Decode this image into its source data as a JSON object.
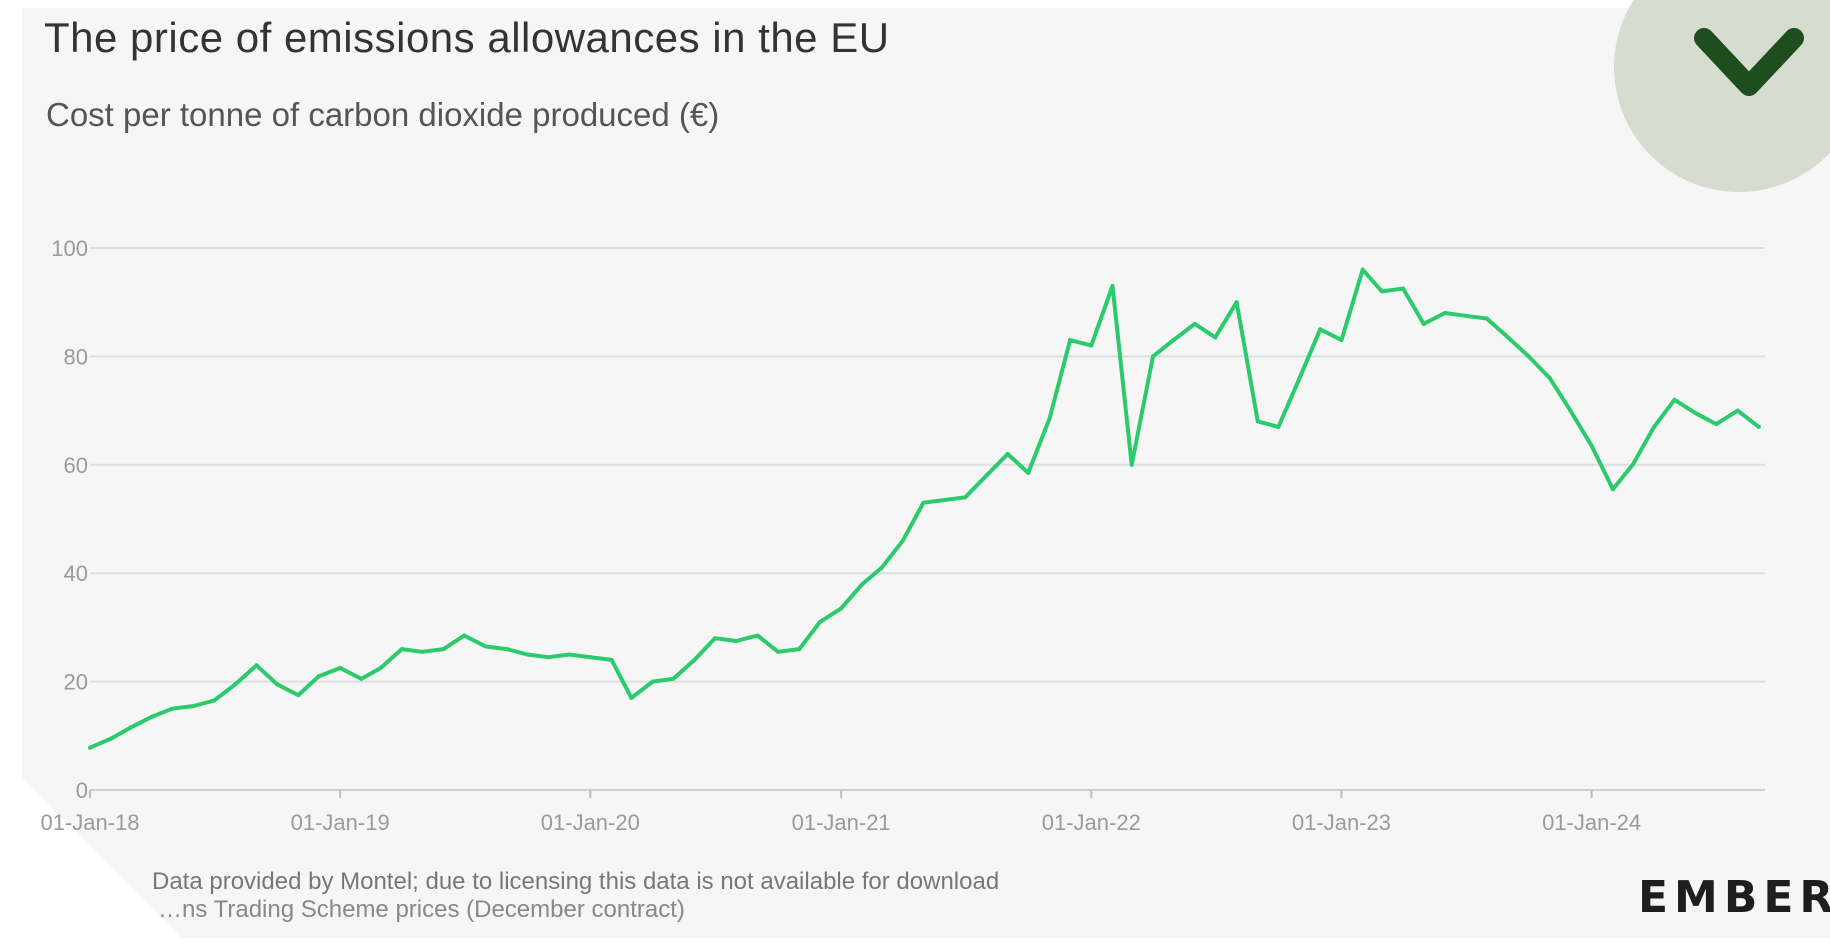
{
  "header": {
    "title": "The price of emissions allowances in the EU",
    "subtitle": "Cost per tonne of carbon dioxide produced (€)"
  },
  "footer": {
    "source_line": "Data provided by Montel; due to licensing this data is not available for download",
    "note_line": "…ns Trading Scheme prices (December contract)"
  },
  "brand": {
    "logo_text": "EMBER"
  },
  "colors": {
    "line": "#2bcb6c",
    "grid": "#dedede",
    "badge_bg": "#d6dccf",
    "chevron": "#1e4d1e"
  },
  "icons": {
    "corner_badge": "chevron-down-icon"
  },
  "chart_data": {
    "type": "line",
    "title": "The price of emissions allowances in the EU",
    "subtitle": "Cost per tonne of carbon dioxide produced (€)",
    "xlabel": "",
    "ylabel": "",
    "ylim": [
      0,
      100
    ],
    "yticks": [
      0,
      20,
      40,
      60,
      80,
      100
    ],
    "xticks": [
      "01-Jan-18",
      "01-Jan-19",
      "01-Jan-20",
      "01-Jan-21",
      "01-Jan-22",
      "01-Jan-23",
      "01-Jan-24"
    ],
    "grid": true,
    "series": [
      {
        "color": "#2bcb6c",
        "points": [
          [
            "2018-01-01",
            7.8
          ],
          [
            "2018-02-01",
            9.5
          ],
          [
            "2018-03-01",
            11.5
          ],
          [
            "2018-04-01",
            13.5
          ],
          [
            "2018-05-01",
            15.0
          ],
          [
            "2018-06-01",
            15.5
          ],
          [
            "2018-07-01",
            16.5
          ],
          [
            "2018-08-01",
            19.5
          ],
          [
            "2018-09-01",
            23.0
          ],
          [
            "2018-10-01",
            19.5
          ],
          [
            "2018-11-01",
            17.5
          ],
          [
            "2018-12-01",
            21.0
          ],
          [
            "2019-01-01",
            22.5
          ],
          [
            "2019-02-01",
            20.5
          ],
          [
            "2019-03-01",
            22.5
          ],
          [
            "2019-04-01",
            26.0
          ],
          [
            "2019-05-01",
            25.5
          ],
          [
            "2019-06-01",
            26.0
          ],
          [
            "2019-07-01",
            28.5
          ],
          [
            "2019-08-01",
            26.5
          ],
          [
            "2019-09-01",
            26.0
          ],
          [
            "2019-10-01",
            25.0
          ],
          [
            "2019-11-01",
            24.5
          ],
          [
            "2019-12-01",
            25.0
          ],
          [
            "2020-01-01",
            24.5
          ],
          [
            "2020-02-01",
            24.0
          ],
          [
            "2020-03-01",
            17.0
          ],
          [
            "2020-04-01",
            20.0
          ],
          [
            "2020-05-01",
            20.5
          ],
          [
            "2020-06-01",
            24.0
          ],
          [
            "2020-07-01",
            28.0
          ],
          [
            "2020-08-01",
            27.5
          ],
          [
            "2020-09-01",
            28.5
          ],
          [
            "2020-10-01",
            25.5
          ],
          [
            "2020-11-01",
            26.0
          ],
          [
            "2020-12-01",
            31.0
          ],
          [
            "2021-01-01",
            33.5
          ],
          [
            "2021-02-01",
            38.0
          ],
          [
            "2021-03-01",
            41.0
          ],
          [
            "2021-04-01",
            46.0
          ],
          [
            "2021-05-01",
            53.0
          ],
          [
            "2021-06-01",
            53.5
          ],
          [
            "2021-07-01",
            54.0
          ],
          [
            "2021-08-01",
            58.0
          ],
          [
            "2021-09-01",
            62.0
          ],
          [
            "2021-10-01",
            58.5
          ],
          [
            "2021-11-01",
            68.5
          ],
          [
            "2021-12-01",
            83.0
          ],
          [
            "2022-01-01",
            82.0
          ],
          [
            "2022-02-01",
            93.0
          ],
          [
            "2022-03-01",
            60.0
          ],
          [
            "2022-04-01",
            80.0
          ],
          [
            "2022-05-01",
            83.0
          ],
          [
            "2022-06-01",
            86.0
          ],
          [
            "2022-07-01",
            83.5
          ],
          [
            "2022-08-01",
            90.0
          ],
          [
            "2022-09-01",
            68.0
          ],
          [
            "2022-10-01",
            67.0
          ],
          [
            "2022-11-01",
            76.0
          ],
          [
            "2022-12-01",
            85.0
          ],
          [
            "2023-01-01",
            83.0
          ],
          [
            "2023-02-01",
            96.0
          ],
          [
            "2023-03-01",
            92.0
          ],
          [
            "2023-04-01",
            92.5
          ],
          [
            "2023-05-01",
            86.0
          ],
          [
            "2023-06-01",
            88.0
          ],
          [
            "2023-07-01",
            87.5
          ],
          [
            "2023-08-01",
            87.0
          ],
          [
            "2023-09-01",
            83.5
          ],
          [
            "2023-10-01",
            80.0
          ],
          [
            "2023-11-01",
            76.0
          ],
          [
            "2023-12-01",
            70.0
          ],
          [
            "2024-01-01",
            63.5
          ],
          [
            "2024-02-01",
            55.5
          ],
          [
            "2024-03-01",
            60.0
          ],
          [
            "2024-04-01",
            67.0
          ],
          [
            "2024-05-01",
            72.0
          ],
          [
            "2024-06-01",
            69.5
          ],
          [
            "2024-07-01",
            67.5
          ],
          [
            "2024-08-01",
            70.0
          ],
          [
            "2024-09-01",
            67.0
          ]
        ]
      }
    ]
  }
}
